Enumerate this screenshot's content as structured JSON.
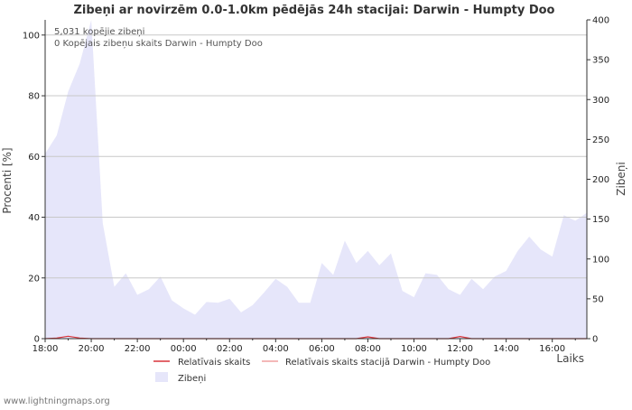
{
  "chart_data": {
    "type": "area",
    "title": "Zibeņi ar novirzēm 0.0-1.0km pēdējās 24h stacijai: Darwin - Humpty Doo",
    "xlabel": "Laiks",
    "ylabel_left": "Procenti   [%]",
    "ylabel_right": "Zibeņi",
    "left_ylim": [
      0,
      105
    ],
    "left_yticks": [
      "0",
      "20",
      "40",
      "60",
      "80",
      "100"
    ],
    "right_ylim": [
      0,
      400
    ],
    "right_yticks": [
      "0",
      "50",
      "100",
      "150",
      "200",
      "250",
      "300",
      "350",
      "400"
    ],
    "x_ticks": [
      "18:00",
      "20:00",
      "22:00",
      "00:00",
      "02:00",
      "04:00",
      "06:00",
      "08:00",
      "10:00",
      "12:00",
      "14:00",
      "16:00"
    ],
    "x_hours_range": [
      0,
      23.5
    ],
    "annotations": [
      "5,031 kopējie zibeņi",
      "0 Kopējais zibeņu skaits Darwin - Humpty Doo"
    ],
    "legend": [
      {
        "label": "Relatīvais skaits",
        "color": "#d9343a",
        "kind": "line"
      },
      {
        "label": "Relatīvais skaits stacijā Darwin - Humpty Doo",
        "color": "#f0a0a0",
        "kind": "line"
      },
      {
        "label": "Zibeņi",
        "color": "#e6e6fa",
        "kind": "area"
      }
    ],
    "series": [
      {
        "name": "Zibeņi",
        "axis": "right",
        "color": "#e6e6fa",
        "x": [
          0,
          0.5,
          1,
          1.5,
          2,
          2.5,
          3,
          3.5,
          4,
          4.5,
          5,
          5.5,
          6,
          6.5,
          7,
          7.5,
          8,
          8.5,
          9,
          9.5,
          10,
          10.5,
          11,
          11.5,
          12,
          12.5,
          13,
          13.5,
          14,
          14.5,
          15,
          15.5,
          16,
          16.5,
          17,
          17.5,
          18,
          18.5,
          19,
          19.5,
          20,
          20.5,
          21,
          21.5,
          22,
          22.5,
          23,
          23.5
        ],
        "values": [
          232,
          255,
          310,
          345,
          400,
          145,
          65,
          82,
          55,
          62,
          78,
          48,
          38,
          30,
          46,
          45,
          50,
          33,
          42,
          58,
          75,
          65,
          45,
          45,
          95,
          80,
          123,
          95,
          110,
          92,
          107,
          60,
          52,
          82,
          80,
          62,
          55,
          75,
          62,
          78,
          85,
          110,
          128,
          112,
          103,
          155,
          148,
          158
        ]
      },
      {
        "name": "Relatīvais skaits",
        "axis": "left",
        "color": "#d9343a",
        "x": [
          0,
          0.5,
          1,
          1.5,
          2,
          2.5,
          3,
          13.5,
          14,
          14.5,
          17.5,
          18,
          18.5,
          23.5
        ],
        "values": [
          0,
          0.2,
          0.8,
          0.2,
          0,
          0,
          0,
          0,
          0.6,
          0,
          0,
          0.7,
          0,
          0
        ]
      }
    ]
  },
  "footer": "www.lightningmaps.org"
}
